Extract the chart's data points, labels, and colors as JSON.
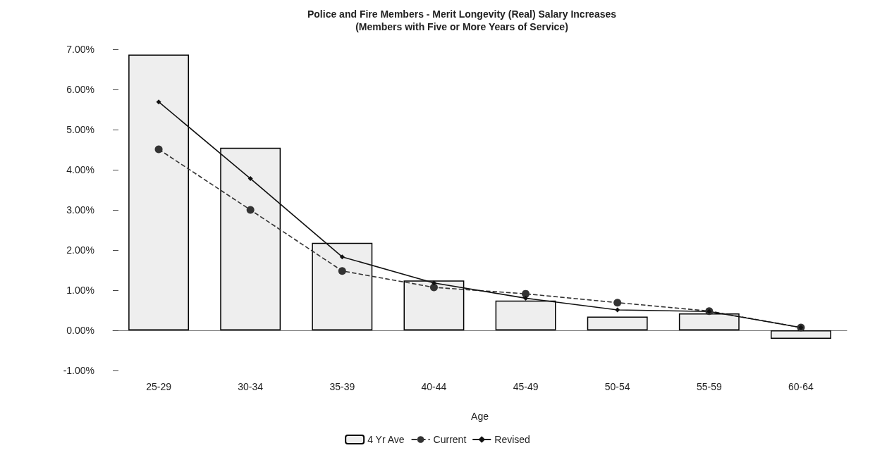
{
  "chart_data": {
    "type": "bar",
    "title": "Police and Fire Members - Merit Longevity (Real) Salary Increases",
    "subtitle": "(Members with Five or More Years of Service)",
    "xlabel": "Age",
    "categories": [
      "25-29",
      "30-34",
      "35-39",
      "40-44",
      "45-49",
      "50-54",
      "55-59",
      "60-64"
    ],
    "series": [
      {
        "name": "4 Yr Ave",
        "color": "#eeeeee",
        "values": [
          6.87,
          4.55,
          2.18,
          1.24,
          0.74,
          0.34,
          0.42,
          -0.21
        ]
      },
      {
        "name": "Current",
        "type": "line",
        "color": "#333333",
        "marker": "circle",
        "line_style": "dashed",
        "values": [
          4.51,
          3.0,
          1.48,
          1.07,
          0.91,
          0.69,
          0.48,
          0.07
        ]
      },
      {
        "name": "Revised",
        "type": "line",
        "color": "#111111",
        "marker": "diamond",
        "line_style": "solid",
        "values": [
          5.69,
          3.78,
          1.83,
          1.18,
          0.8,
          0.51,
          0.47,
          0.07
        ]
      }
    ],
    "ylim": [
      -1,
      7
    ],
    "yticks": [
      {
        "value": -1,
        "label": "-1.00%"
      },
      {
        "value": 0,
        "label": "0.00%"
      },
      {
        "value": 1,
        "label": "1.00%"
      },
      {
        "value": 2,
        "label": "2.00%"
      },
      {
        "value": 3,
        "label": "3.00%"
      },
      {
        "value": 4,
        "label": "4.00%"
      },
      {
        "value": 5,
        "label": "5.00%"
      },
      {
        "value": 6,
        "label": "6.00%"
      },
      {
        "value": 7,
        "label": "7.00%"
      }
    ],
    "legend": "bottom"
  }
}
